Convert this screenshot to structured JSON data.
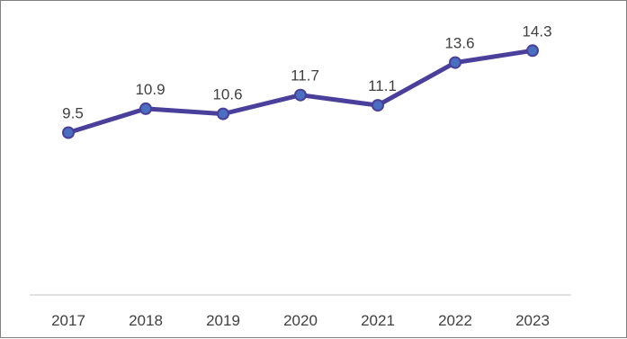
{
  "chart_data": {
    "type": "line",
    "title": "",
    "xlabel": "",
    "ylabel": "",
    "categories": [
      "2017",
      "2018",
      "2019",
      "2020",
      "2021",
      "2022",
      "2023"
    ],
    "series": [
      {
        "values": [
          9.5,
          10.9,
          10.6,
          11.7,
          11.1,
          13.6,
          14.3
        ],
        "labels": [
          "9.5",
          "10.9",
          "10.6",
          "11.7",
          "11.1",
          "13.6",
          "14.3"
        ]
      }
    ],
    "ylim": [
      0,
      16
    ],
    "grid": false,
    "legend": "none",
    "colors": {
      "line": "#4a3f9b",
      "marker_fill": "#4a6fc0",
      "marker_edge": "#4a3f9b",
      "axis": "#d9d9d9",
      "text": "#404040"
    }
  }
}
